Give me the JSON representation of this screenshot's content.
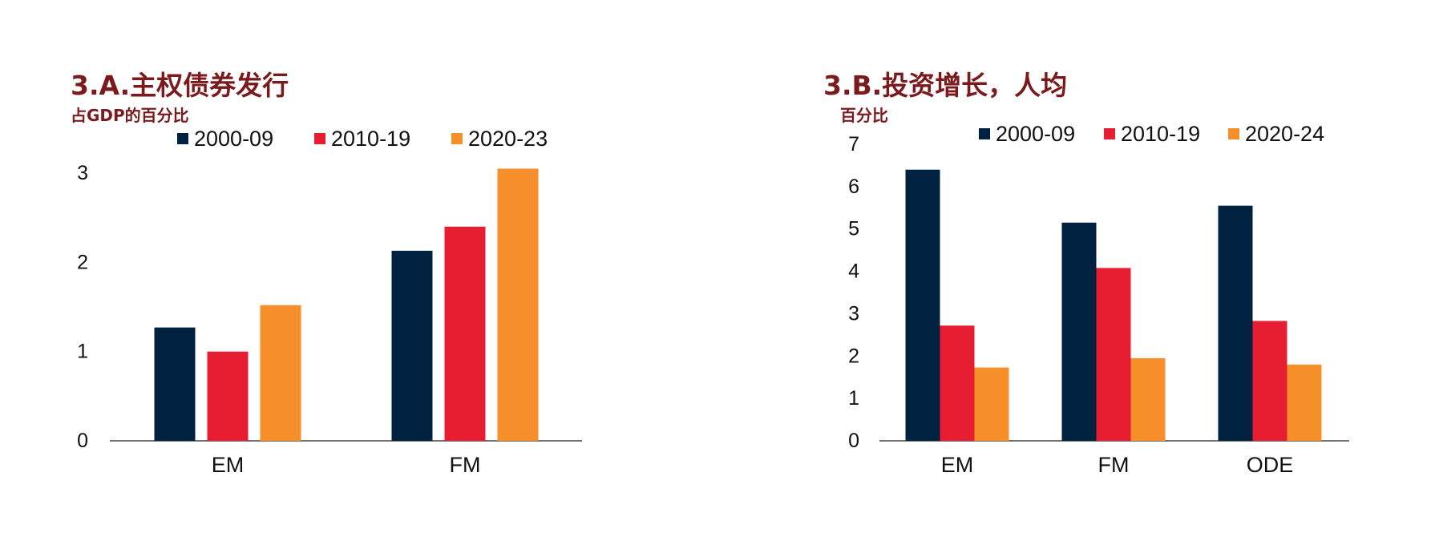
{
  "colors": {
    "title": "#7b1a1d",
    "series": [
      "#00213f",
      "#e71d32",
      "#f7902a"
    ],
    "axis": "#444444"
  },
  "panels": [
    {
      "title": "3.A.主权债券发行",
      "unit": "占GDP的百分比",
      "chart_data": {
        "type": "bar",
        "title": "3.A.主权债券发行",
        "ylabel": "占GDP的百分比",
        "xlabel": "",
        "categories": [
          "EM",
          "FM"
        ],
        "series": [
          {
            "name": "2000-09",
            "values": [
              1.27,
              2.13
            ]
          },
          {
            "name": "2010-19",
            "values": [
              1.0,
              2.4
            ]
          },
          {
            "name": "2020-23",
            "values": [
              1.52,
              3.05
            ]
          }
        ],
        "ylim": [
          0,
          3
        ],
        "yticks": [
          0,
          1,
          2,
          3
        ],
        "grid": false,
        "legend": "top"
      }
    },
    {
      "title": "3.B.投资增长，人均",
      "unit": "百分比",
      "chart_data": {
        "type": "bar",
        "title": "3.B.投资增长，人均",
        "ylabel": "百分比",
        "xlabel": "",
        "categories": [
          "EM",
          "FM",
          "ODE"
        ],
        "series": [
          {
            "name": "2000-09",
            "values": [
              6.4,
              5.15,
              5.55
            ]
          },
          {
            "name": "2010-19",
            "values": [
              2.72,
              4.08,
              2.83
            ]
          },
          {
            "name": "2020-24",
            "values": [
              1.73,
              1.95,
              1.8
            ]
          }
        ],
        "ylim": [
          0,
          7
        ],
        "yticks": [
          0,
          1,
          2,
          3,
          4,
          5,
          6,
          7
        ],
        "grid": false,
        "legend": "top"
      }
    }
  ]
}
